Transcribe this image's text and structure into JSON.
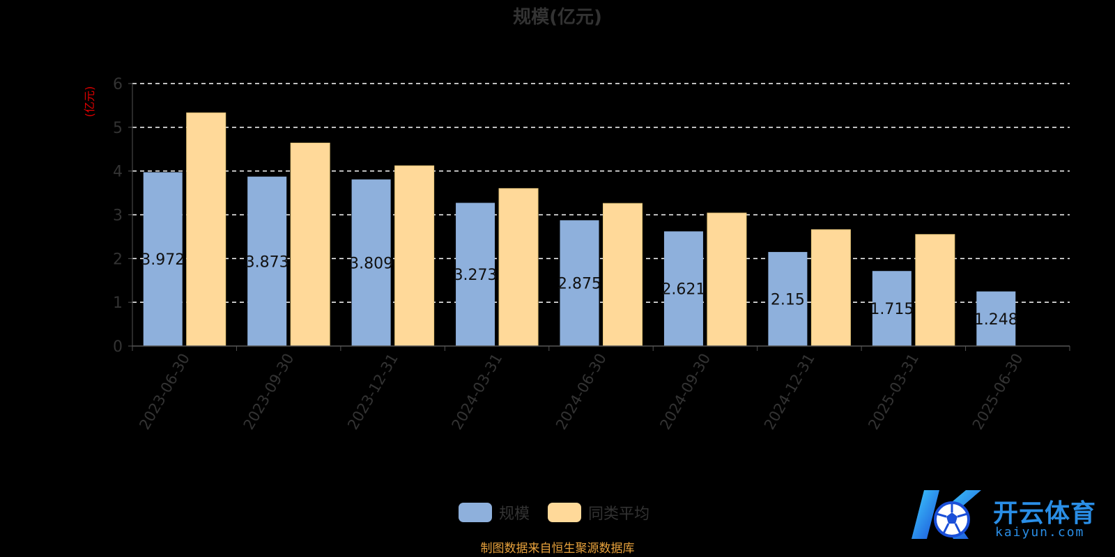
{
  "chart_data": {
    "type": "bar",
    "title": "规模(亿元)",
    "ylabel": "(亿元)",
    "ylim": [
      0,
      6
    ],
    "yticks": [
      0,
      1,
      2,
      3,
      4,
      5,
      6
    ],
    "grid": true,
    "legend_position": "bottom",
    "categories": [
      "2023-06-30",
      "2023-09-30",
      "2023-12-31",
      "2024-03-31",
      "2024-06-30",
      "2024-09-30",
      "2024-12-31",
      "2025-03-31",
      "2025-06-30"
    ],
    "series": [
      {
        "name": "规模",
        "color": "#8eb0dc",
        "values": [
          3.972,
          3.873,
          3.809,
          3.273,
          2.875,
          2.621,
          2.15,
          1.715,
          1.248
        ],
        "labels": [
          "3.972",
          "3.873",
          "3.809",
          "3.273",
          "2.875",
          "2.621",
          "2.15",
          "1.715",
          "1.248"
        ]
      },
      {
        "name": "同类平均",
        "color": "#ffd999",
        "values": [
          5.33,
          4.64,
          4.12,
          3.6,
          3.26,
          3.04,
          2.66,
          2.55,
          null
        ]
      }
    ]
  },
  "source_note": "制图数据来自恒生聚源数据库",
  "logo": {
    "brand": "开云体育",
    "url": "kaiyun.com"
  }
}
